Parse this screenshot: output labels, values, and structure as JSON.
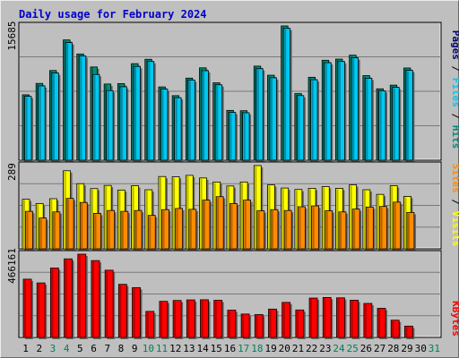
{
  "chart_data": [
    {
      "type": "bar",
      "title": "Daily usage for February 2024",
      "categories": [
        "1",
        "2",
        "3",
        "4",
        "5",
        "6",
        "7",
        "8",
        "9",
        "10",
        "11",
        "12",
        "13",
        "14",
        "15",
        "16",
        "17",
        "18",
        "19",
        "20",
        "21",
        "22",
        "23",
        "24",
        "25",
        "26",
        "27",
        "28",
        "29",
        "30",
        "31"
      ],
      "weekend_days": [
        "3",
        "4",
        "10",
        "11",
        "17",
        "18",
        "24",
        "25",
        "31"
      ],
      "ymax_label": "15685",
      "ymax": 15685,
      "ylabel_parts": [
        "Pages",
        " / ",
        "Files",
        " / ",
        "Hits"
      ],
      "series": [
        {
          "name": "Hits",
          "color": "#008f7a",
          "values": [
            7640,
            8970,
            10480,
            14050,
            12410,
            10890,
            8900,
            8950,
            11280,
            11790,
            8560,
            7540,
            9590,
            10790,
            9040,
            5820,
            5780,
            10990,
            9930,
            15685,
            7780,
            9690,
            11680,
            11810,
            12270,
            9880,
            8340,
            8770,
            10770,
            null,
            null
          ]
        },
        {
          "name": "Files",
          "color": "#00c8f0",
          "values": [
            7460,
            8680,
            10180,
            13740,
            12180,
            10010,
            8130,
            8580,
            10950,
            11530,
            8310,
            7300,
            9370,
            10460,
            8810,
            5580,
            5540,
            10690,
            9630,
            15400,
            7550,
            9400,
            11390,
            11530,
            11960,
            9580,
            8110,
            8510,
            10500,
            null,
            null
          ]
        },
        {
          "name": "Pages",
          "color": "#000070",
          "values": [
            null,
            null,
            null,
            null,
            null,
            null,
            null,
            null,
            null,
            null,
            null,
            null,
            null,
            null,
            null,
            null,
            null,
            null,
            null,
            null,
            null,
            null,
            null,
            null,
            null,
            null,
            null,
            null,
            null,
            null,
            null
          ]
        }
      ]
    },
    {
      "type": "bar",
      "ymax_label": "289",
      "ymax": 289,
      "ylabel_parts": [
        "Sites",
        " / ",
        "Visits"
      ],
      "series": [
        {
          "name": "Visits",
          "color": "#ffff00",
          "values": [
            172,
            157,
            174,
            271,
            226,
            209,
            220,
            204,
            219,
            205,
            251,
            250,
            255,
            246,
            232,
            218,
            232,
            289,
            222,
            211,
            206,
            210,
            216,
            210,
            222,
            205,
            189,
            219,
            182,
            null,
            null
          ]
        },
        {
          "name": "Sites",
          "color": "#ff8c00",
          "values": [
            130,
            107,
            128,
            175,
            161,
            123,
            133,
            130,
            133,
            116,
            136,
            140,
            137,
            169,
            181,
            157,
            169,
            132,
            136,
            133,
            146,
            149,
            132,
            128,
            138,
            145,
            147,
            162,
            126,
            null,
            null
          ]
        }
      ]
    },
    {
      "type": "bar",
      "ymax_label": "466161",
      "ymax": 466161,
      "ylabel_parts": [
        "KBytes"
      ],
      "series": [
        {
          "name": "KBytes",
          "color": "#ff0000",
          "values": [
            326200,
            305200,
            388600,
            439900,
            466161,
            430300,
            376400,
            297200,
            278900,
            145800,
            202000,
            207000,
            210100,
            211000,
            207900,
            152400,
            130900,
            127900,
            158600,
            196100,
            153700,
            220300,
            223600,
            221700,
            208400,
            190400,
            163000,
            96400,
            63400,
            null,
            null
          ]
        }
      ]
    }
  ]
}
